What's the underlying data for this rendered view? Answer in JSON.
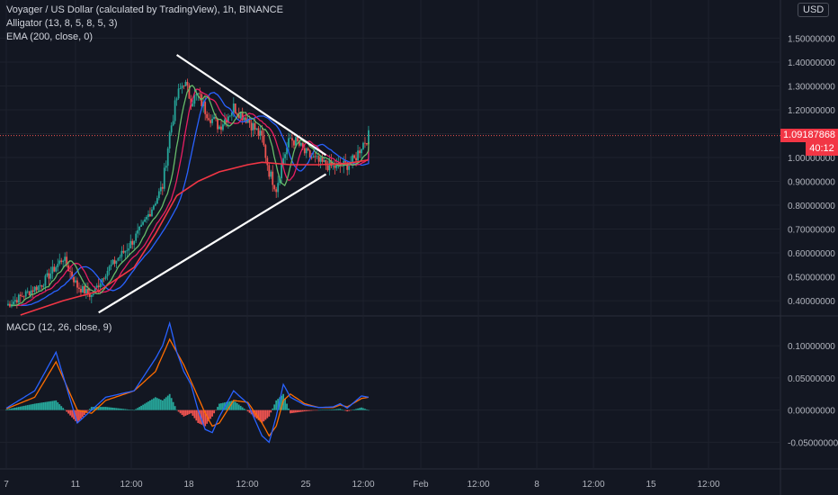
{
  "legend": {
    "symbol": "Voyager / US Dollar (calculated by TradingView), 1h, BINANCE",
    "alligator": "Alligator (13, 8, 5, 8, 5, 3)",
    "ema": "EMA (200, close, 0)",
    "macd": "MACD (12, 26, close, 9)"
  },
  "currency": "USD",
  "last_price_label": "1.09187868",
  "countdown_label": "40:12",
  "colors": {
    "background": "#131722",
    "grid": "#1e222d",
    "up": "#26a69a",
    "down": "#ef5350",
    "jaw": "#2962ff",
    "teeth": "#e91e63",
    "lips": "#66bb6a",
    "ema": "#f23645",
    "trendline": "#ffffff",
    "macd": "#2962ff",
    "signal": "#ff6d00",
    "hist_up": "#26a69a",
    "hist_down": "#ef5350"
  },
  "chart_data": [
    {
      "type": "candlestick",
      "title": "Voyager / US Dollar (calculated by TradingView), 1h, BINANCE",
      "ylim": [
        0.34,
        1.66
      ],
      "y_ticks": [
        1.5,
        1.4,
        1.3,
        1.2,
        1.1,
        1.0,
        0.9,
        0.8,
        0.7,
        0.6,
        0.5,
        0.4
      ],
      "y_tick_labels": [
        "1.50000000",
        "1.40000000",
        "1.30000000",
        "1.20000000",
        "1.10000000",
        "1.00000000",
        "0.90000000",
        "0.80000000",
        "0.70000000",
        "0.60000000",
        "0.50000000",
        "0.40000000"
      ],
      "x_tick_labels": [
        "7",
        "11",
        "12:00",
        "18",
        "12:00",
        "25",
        "12:00",
        "Feb",
        "12:00",
        "8",
        "12:00",
        "15",
        "12:00"
      ],
      "last_price": 1.09187868,
      "price_path": [
        [
          0,
          0.38
        ],
        [
          5,
          0.47
        ],
        [
          8,
          0.58
        ],
        [
          10,
          0.46
        ],
        [
          12,
          0.42
        ],
        [
          14,
          0.52
        ],
        [
          17,
          0.62
        ],
        [
          19,
          0.7
        ],
        [
          22,
          0.88
        ],
        [
          23,
          1.1
        ],
        [
          24,
          1.25
        ],
        [
          25,
          1.32
        ],
        [
          26,
          1.24
        ],
        [
          27,
          1.26
        ],
        [
          28,
          1.2
        ],
        [
          29,
          1.16
        ],
        [
          30,
          1.13
        ],
        [
          32,
          1.21
        ],
        [
          34,
          1.16
        ],
        [
          36,
          1.08
        ],
        [
          37,
          0.94
        ],
        [
          38,
          0.87
        ],
        [
          39,
          1.0
        ],
        [
          40,
          1.08
        ],
        [
          41,
          1.06
        ],
        [
          42,
          1.02
        ],
        [
          44,
          0.98
        ],
        [
          46,
          0.96
        ],
        [
          48,
          0.97
        ],
        [
          49,
          0.99
        ],
        [
          50,
          1.05
        ],
        [
          51,
          1.09
        ]
      ],
      "ema200_path": [
        [
          2,
          0.34
        ],
        [
          8,
          0.4
        ],
        [
          13,
          0.44
        ],
        [
          18,
          0.54
        ],
        [
          21,
          0.68
        ],
        [
          24,
          0.84
        ],
        [
          27,
          0.9
        ],
        [
          30,
          0.94
        ],
        [
          34,
          0.97
        ],
        [
          36,
          0.98
        ],
        [
          40,
          0.97
        ],
        [
          44,
          0.97
        ],
        [
          48,
          0.975
        ],
        [
          51,
          0.99
        ]
      ],
      "trendlines": [
        {
          "name": "upper-trendline",
          "points": [
            [
              24,
              1.43
            ],
            [
              45,
              1.01
            ]
          ]
        },
        {
          "name": "lower-trendline",
          "points": [
            [
              13,
              0.35
            ],
            [
              45,
              0.93
            ]
          ]
        }
      ]
    },
    {
      "type": "line",
      "title": "MACD (12, 26, close, 9)",
      "ylim": [
        -0.09,
        0.145
      ],
      "y_ticks": [
        0.1,
        0.05,
        0.0,
        -0.05
      ],
      "y_tick_labels": [
        "0.10000000",
        "0.05000000",
        "0.00000000",
        "-0.05000000"
      ],
      "macd_path": [
        [
          0,
          0.003
        ],
        [
          4,
          0.03
        ],
        [
          7,
          0.09
        ],
        [
          10,
          -0.02
        ],
        [
          12,
          0.0
        ],
        [
          14,
          0.02
        ],
        [
          18,
          0.03
        ],
        [
          21,
          0.08
        ],
        [
          22,
          0.1
        ],
        [
          23,
          0.135
        ],
        [
          24,
          0.09
        ],
        [
          25,
          0.06
        ],
        [
          26,
          0.04
        ],
        [
          27,
          0.0
        ],
        [
          28,
          -0.03
        ],
        [
          29,
          -0.035
        ],
        [
          30,
          -0.01
        ],
        [
          32,
          0.03
        ],
        [
          34,
          0.01
        ],
        [
          36,
          -0.04
        ],
        [
          37,
          -0.05
        ],
        [
          38,
          -0.01
        ],
        [
          39,
          0.04
        ],
        [
          40,
          0.02
        ],
        [
          42,
          0.008
        ],
        [
          44,
          0.004
        ],
        [
          46,
          0.005
        ],
        [
          47,
          0.01
        ],
        [
          48,
          0.003
        ],
        [
          50,
          0.022
        ],
        [
          51,
          0.02
        ]
      ],
      "signal_path": [
        [
          0,
          0.002
        ],
        [
          4,
          0.02
        ],
        [
          7,
          0.075
        ],
        [
          10,
          0.0
        ],
        [
          12,
          -0.005
        ],
        [
          14,
          0.015
        ],
        [
          18,
          0.03
        ],
        [
          21,
          0.06
        ],
        [
          22,
          0.085
        ],
        [
          23,
          0.11
        ],
        [
          24,
          0.09
        ],
        [
          25,
          0.07
        ],
        [
          26,
          0.045
        ],
        [
          27,
          0.02
        ],
        [
          28,
          -0.005
        ],
        [
          29,
          -0.025
        ],
        [
          30,
          -0.02
        ],
        [
          32,
          0.015
        ],
        [
          34,
          0.012
        ],
        [
          36,
          -0.02
        ],
        [
          37,
          -0.04
        ],
        [
          38,
          -0.025
        ],
        [
          39,
          0.015
        ],
        [
          40,
          0.025
        ],
        [
          42,
          0.01
        ],
        [
          44,
          0.004
        ],
        [
          46,
          0.004
        ],
        [
          47,
          0.008
        ],
        [
          48,
          0.005
        ],
        [
          50,
          0.018
        ],
        [
          51,
          0.02
        ]
      ]
    }
  ]
}
